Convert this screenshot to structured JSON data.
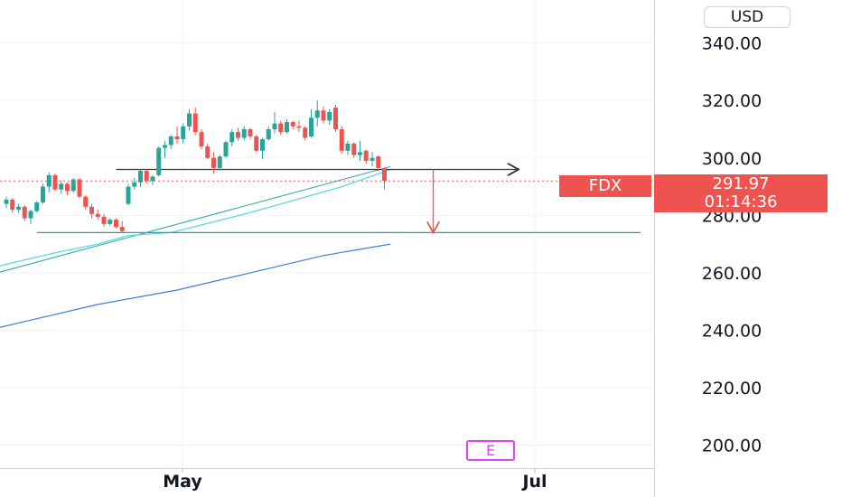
{
  "currency": "USD",
  "symbol": "FDX",
  "last_price": "291.97",
  "countdown": "01:14:36",
  "earnings_label": "E",
  "colors": {
    "up": "#26a69a",
    "down": "#ef5350",
    "ma_fast": "#5ad8e6",
    "ma_slow": "#3d7fd6",
    "trendline": "#26a69a",
    "support": "#26a69a",
    "neckline": "#333333",
    "target_arrow": "#ef5350"
  },
  "chart_data": {
    "type": "candlestick",
    "title": "",
    "ylim": [
      192,
      355
    ],
    "y_ticks": [
      "340.00",
      "320.00",
      "300.00",
      "280.00",
      "260.00",
      "240.00",
      "220.00",
      "200.00"
    ],
    "x_ticks": [
      "May",
      "Jul"
    ],
    "candles": [
      [
        284.0,
        286.5,
        282.5,
        285.5
      ],
      [
        285.5,
        286.0,
        281.0,
        282.0
      ],
      [
        282.0,
        284.0,
        281.0,
        283.0
      ],
      [
        283.0,
        283.5,
        278.0,
        279.0
      ],
      [
        279.0,
        282.0,
        277.0,
        281.5
      ],
      [
        281.5,
        285.0,
        281.0,
        284.5
      ],
      [
        284.5,
        291.0,
        284.0,
        290.0
      ],
      [
        290.0,
        295.0,
        288.0,
        294.0
      ],
      [
        294.0,
        294.5,
        288.5,
        289.0
      ],
      [
        289.0,
        292.0,
        287.5,
        291.0
      ],
      [
        291.0,
        291.5,
        287.0,
        288.5
      ],
      [
        288.5,
        293.0,
        288.0,
        292.5
      ],
      [
        292.5,
        293.0,
        286.0,
        286.5
      ],
      [
        286.5,
        287.0,
        282.0,
        283.0
      ],
      [
        283.0,
        284.0,
        279.0,
        280.5
      ],
      [
        280.5,
        282.0,
        278.5,
        279.5
      ],
      [
        279.5,
        280.5,
        276.0,
        277.0
      ],
      [
        277.0,
        279.0,
        276.5,
        278.5
      ],
      [
        278.5,
        279.0,
        275.5,
        276.0
      ],
      [
        276.0,
        278.0,
        274.0,
        274.5
      ],
      [
        284.0,
        291.0,
        283.5,
        290.0
      ],
      [
        290.0,
        293.0,
        289.0,
        291.5
      ],
      [
        291.5,
        296.0,
        290.0,
        295.5
      ],
      [
        295.5,
        296.0,
        291.0,
        292.0
      ],
      [
        292.0,
        294.0,
        290.5,
        293.5
      ],
      [
        294.0,
        304.0,
        293.5,
        303.5
      ],
      [
        303.5,
        306.0,
        300.0,
        304.5
      ],
      [
        304.5,
        308.0,
        303.0,
        307.5
      ],
      [
        307.5,
        311.0,
        305.0,
        306.5
      ],
      [
        306.5,
        312.0,
        305.0,
        311.0
      ],
      [
        311.0,
        317.0,
        309.5,
        315.5
      ],
      [
        315.5,
        317.5,
        308.0,
        309.0
      ],
      [
        309.0,
        310.0,
        303.0,
        304.0
      ],
      [
        304.0,
        305.0,
        299.5,
        300.0
      ],
      [
        300.0,
        302.0,
        294.5,
        296.5
      ],
      [
        296.5,
        301.0,
        295.5,
        300.5
      ],
      [
        300.5,
        306.0,
        300.0,
        305.5
      ],
      [
        305.5,
        310.0,
        304.0,
        309.0
      ],
      [
        309.0,
        310.5,
        306.0,
        307.0
      ],
      [
        307.0,
        311.0,
        306.0,
        310.0
      ],
      [
        310.0,
        310.5,
        306.5,
        307.5
      ],
      [
        307.5,
        308.0,
        302.0,
        302.5
      ],
      [
        302.5,
        307.0,
        299.5,
        306.5
      ],
      [
        306.5,
        311.0,
        306.0,
        310.0
      ],
      [
        310.0,
        316.0,
        308.5,
        312.0
      ],
      [
        312.0,
        313.0,
        308.0,
        309.0
      ],
      [
        309.0,
        313.5,
        308.5,
        312.5
      ],
      [
        312.5,
        313.0,
        310.0,
        311.0
      ],
      [
        311.0,
        313.0,
        309.0,
        310.5
      ],
      [
        310.5,
        311.0,
        306.0,
        307.0
      ],
      [
        307.5,
        317.0,
        307.0,
        314.0
      ],
      [
        314.0,
        320.0,
        311.0,
        316.5
      ],
      [
        316.5,
        318.0,
        312.0,
        313.0
      ],
      [
        313.0,
        317.0,
        311.5,
        316.0
      ],
      [
        317.5,
        318.5,
        309.0,
        310.0
      ],
      [
        310.0,
        311.0,
        301.5,
        302.5
      ],
      [
        302.5,
        306.0,
        301.0,
        305.0
      ],
      [
        305.0,
        305.5,
        300.0,
        301.0
      ],
      [
        301.0,
        306.0,
        299.0,
        302.0
      ],
      [
        302.5,
        303.0,
        298.0,
        299.0
      ],
      [
        299.0,
        302.0,
        297.0,
        300.0
      ],
      [
        300.5,
        301.0,
        295.5,
        296.5
      ],
      [
        296.5,
        296.5,
        289.0,
        291.97
      ]
    ],
    "lines": [
      {
        "name": "trendline",
        "points": [
          [
            -5,
            258
          ],
          [
            63,
            297
          ]
        ]
      },
      {
        "name": "ma_fast",
        "points": [
          [
            -5,
            260
          ],
          [
            0,
            263
          ],
          [
            8,
            267
          ],
          [
            15,
            270
          ],
          [
            20,
            273
          ],
          [
            27,
            274
          ],
          [
            40,
            281
          ],
          [
            55,
            290
          ],
          [
            63,
            296
          ]
        ]
      },
      {
        "name": "ma_slow",
        "points": [
          [
            -5,
            239
          ],
          [
            5,
            244
          ],
          [
            15,
            249
          ],
          [
            28,
            254
          ],
          [
            40,
            260
          ],
          [
            52,
            266
          ],
          [
            63,
            270
          ]
        ]
      },
      {
        "name": "neckline",
        "points": [
          [
            18,
            296
          ],
          [
            84,
            296
          ]
        ],
        "arrow": true
      },
      {
        "name": "support",
        "points": [
          [
            5,
            274
          ],
          [
            104,
            274
          ]
        ]
      },
      {
        "name": "target_arrow",
        "points": [
          [
            70,
            296
          ],
          [
            70,
            274
          ]
        ],
        "arrow": true
      }
    ]
  }
}
